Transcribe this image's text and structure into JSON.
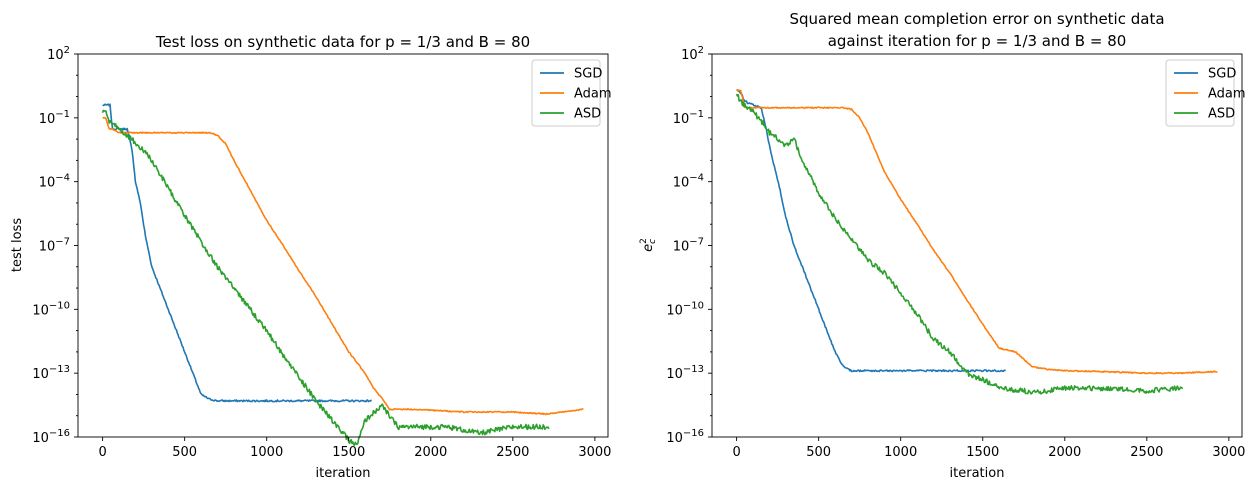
{
  "chart_data": [
    {
      "type": "line",
      "title": "Test loss on synthetic data for p = 1/3 and B = 80",
      "xlabel": "iteration",
      "ylabel": "test loss",
      "yscale": "log",
      "xlim": [
        -150,
        3080
      ],
      "ylim": [
        1e-16,
        100
      ],
      "xticks": [
        0,
        500,
        1000,
        1500,
        2000,
        2500,
        3000
      ],
      "xtick_labels": [
        "0",
        "500",
        "1000",
        "1500",
        "2000",
        "2500",
        "3000"
      ],
      "ytick_exponents": [
        -16,
        -13,
        -10,
        -7,
        -4,
        -1,
        2
      ],
      "legend_position": "top-right",
      "series": [
        {
          "name": "SGD",
          "color": "#1f77b4",
          "noise": 0.04,
          "x": [
            0,
            20,
            45,
            60,
            100,
            150,
            180,
            200,
            230,
            260,
            300,
            350,
            400,
            450,
            500,
            550,
            600,
            650,
            700,
            800,
            1000,
            1200,
            1400,
            1640
          ],
          "y": [
            0.4,
            0.4,
            0.4,
            0.03,
            0.03,
            0.03,
            0.003,
            0.0001,
            1e-05,
            3e-07,
            1e-08,
            1e-09,
            1e-10,
            1e-11,
            1e-12,
            1e-13,
            1e-14,
            6e-15,
            5e-15,
            5e-15,
            5e-15,
            5e-15,
            5e-15,
            5e-15
          ]
        },
        {
          "name": "Adam",
          "color": "#ff7f0e",
          "noise": 0.025,
          "x": [
            0,
            20,
            40,
            60,
            100,
            300,
            500,
            650,
            700,
            750,
            800,
            900,
            1000,
            1100,
            1200,
            1300,
            1400,
            1500,
            1600,
            1650,
            1700,
            1750,
            1800,
            1900,
            2000,
            2200,
            2500,
            2700,
            2800,
            2930
          ],
          "y": [
            0.1,
            0.1,
            0.03,
            0.03,
            0.02,
            0.02,
            0.02,
            0.02,
            0.015,
            0.006,
            0.001,
            4e-05,
            1.5e-06,
            1e-07,
            6e-09,
            4e-10,
            2e-11,
            1e-12,
            1e-13,
            2e-14,
            7e-15,
            2e-15,
            2e-15,
            2e-15,
            1.8e-15,
            1.5e-15,
            1.5e-15,
            1.2e-15,
            1.5e-15,
            2e-15
          ]
        },
        {
          "name": "ASD",
          "color": "#2ca02c",
          "noise": 0.12,
          "x": [
            0,
            20,
            40,
            80,
            150,
            250,
            300,
            400,
            500,
            600,
            700,
            800,
            900,
            1000,
            1100,
            1200,
            1300,
            1400,
            1500,
            1550,
            1600,
            1700,
            1800,
            1900,
            2000,
            2100,
            2300,
            2500,
            2720
          ],
          "y": [
            0.2,
            0.2,
            0.06,
            0.04,
            0.015,
            0.003,
            0.001,
            5e-05,
            2.5e-06,
            1.5e-07,
            1e-08,
            1e-09,
            1e-10,
            1e-11,
            7e-13,
            6e-14,
            5e-15,
            6e-16,
            7e-17,
            4e-17,
            6e-16,
            3e-15,
            3e-16,
            3e-16,
            3e-16,
            3e-16,
            1.5e-16,
            3e-16,
            3e-16
          ]
        }
      ]
    },
    {
      "type": "line",
      "title": "Squared mean completion error on synthetic data",
      "title_line2": "against iteration for p = 1/3 and B = 80",
      "xlabel": "iteration",
      "ylabel": "e",
      "ylabel_sup": "2",
      "ylabel_sub": "c",
      "yscale": "log",
      "xlim": [
        -150,
        3080
      ],
      "ylim": [
        1e-16,
        100
      ],
      "xticks": [
        0,
        500,
        1000,
        1500,
        2000,
        2500,
        3000
      ],
      "xtick_labels": [
        "0",
        "500",
        "1000",
        "1500",
        "2000",
        "2500",
        "3000"
      ],
      "ytick_exponents": [
        -16,
        -13,
        -10,
        -7,
        -4,
        -1,
        2
      ],
      "legend_position": "top-right",
      "series": [
        {
          "name": "SGD",
          "color": "#1f77b4",
          "noise": 0.04,
          "x": [
            0,
            25,
            50,
            100,
            150,
            180,
            200,
            230,
            260,
            300,
            350,
            400,
            450,
            500,
            550,
            600,
            650,
            700,
            800,
            1000,
            1200,
            1400,
            1640
          ],
          "y": [
            2,
            1.5,
            0.6,
            0.4,
            0.3,
            0.03,
            0.005,
            0.0005,
            6e-05,
            2e-06,
            1e-07,
            1e-08,
            1e-09,
            1e-10,
            1e-11,
            1e-12,
            2e-13,
            1.3e-13,
            1.3e-13,
            1.3e-13,
            1.3e-13,
            1.3e-13,
            1.3e-13
          ]
        },
        {
          "name": "Adam",
          "color": "#ff7f0e",
          "noise": 0.025,
          "x": [
            0,
            25,
            50,
            100,
            300,
            500,
            650,
            700,
            750,
            800,
            900,
            1000,
            1100,
            1200,
            1300,
            1400,
            1500,
            1600,
            1700,
            1800,
            1900,
            2000,
            2200,
            2500,
            2700,
            2930
          ],
          "y": [
            2,
            2,
            0.3,
            0.3,
            0.3,
            0.3,
            0.3,
            0.25,
            0.1,
            0.02,
            0.0003,
            1.5e-05,
            1e-06,
            6e-08,
            5e-09,
            3e-10,
            2e-11,
            1.5e-12,
            1e-12,
            2e-13,
            1.5e-13,
            1.3e-13,
            1.2e-13,
            1e-13,
            1e-13,
            1.2e-13
          ]
        },
        {
          "name": "ASD",
          "color": "#2ca02c",
          "noise": 0.12,
          "x": [
            0,
            20,
            50,
            100,
            150,
            200,
            300,
            350,
            400,
            500,
            600,
            700,
            800,
            900,
            1000,
            1100,
            1200,
            1300,
            1400,
            1500,
            1600,
            1700,
            1750,
            1800,
            1900,
            2000,
            2200,
            2500,
            2720
          ],
          "y": [
            1.5,
            0.6,
            0.4,
            0.2,
            0.07,
            0.02,
            0.005,
            0.01,
            0.001,
            3e-05,
            2e-06,
            2e-07,
            2e-08,
            5e-09,
            6e-10,
            6e-11,
            4e-12,
            1e-12,
            1e-13,
            5e-14,
            2e-14,
            1.5e-14,
            1.5e-14,
            1.2e-14,
            1.5e-14,
            2e-14,
            2e-14,
            1.5e-14,
            2e-14
          ]
        }
      ]
    }
  ]
}
